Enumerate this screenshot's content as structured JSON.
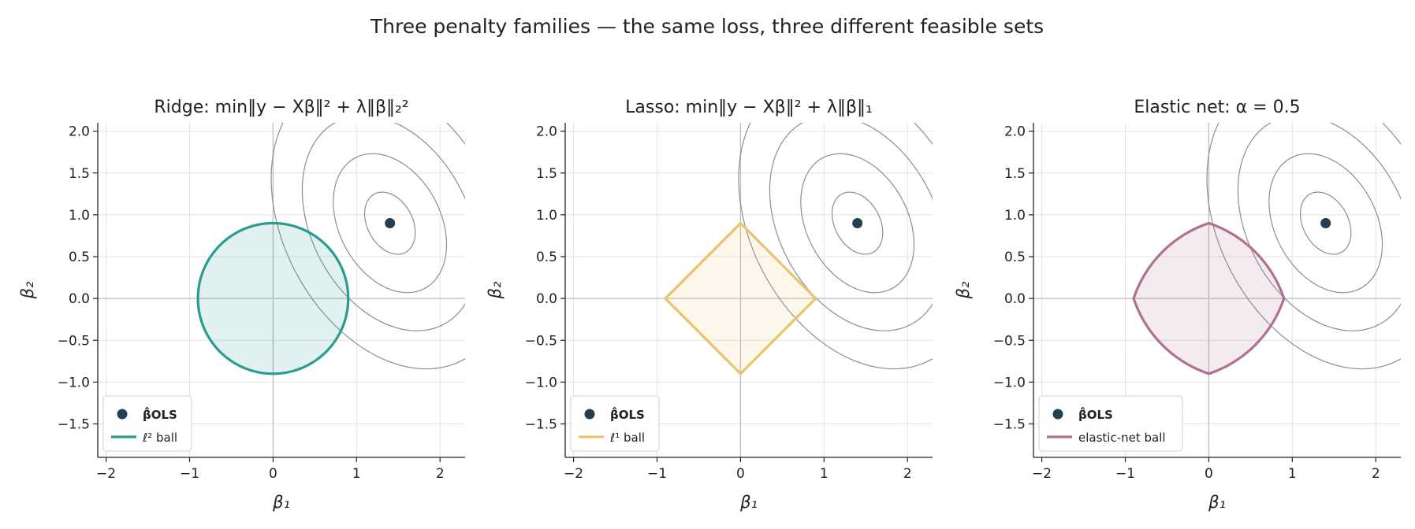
{
  "suptitle": "Three penalty families — the same loss, three different feasible sets",
  "chart_data": [
    {
      "type": "contour",
      "title": "Ridge:  min‖y − Xβ‖² + λ‖β‖₂²",
      "xlabel": "β₁",
      "ylabel": "β₂",
      "xlim": [
        -2.1,
        2.3
      ],
      "ylim": [
        -1.9,
        2.1
      ],
      "xticks": [
        -2,
        -1,
        0,
        1,
        2
      ],
      "yticks": [
        -1.5,
        -1.0,
        -0.5,
        0.0,
        0.5,
        1.0,
        1.5,
        2.0
      ],
      "grid": true,
      "ols_point": [
        1.4,
        0.9
      ],
      "constraint": {
        "shape": "l2",
        "radius": 0.9
      },
      "constraint_color": "#2a9d8f",
      "legend": {
        "position": "lower-left",
        "entries": [
          "β̂OLS",
          "ℓ² ball"
        ]
      }
    },
    {
      "type": "contour",
      "title": "Lasso:  min‖y − Xβ‖² + λ‖β‖₁",
      "xlabel": "β₁",
      "ylabel": "β₂",
      "xlim": [
        -2.1,
        2.3
      ],
      "ylim": [
        -1.9,
        2.1
      ],
      "xticks": [
        -2,
        -1,
        0,
        1,
        2
      ],
      "yticks": [
        -1.5,
        -1.0,
        -0.5,
        0.0,
        0.5,
        1.0,
        1.5,
        2.0
      ],
      "grid": true,
      "ols_point": [
        1.4,
        0.9
      ],
      "constraint": {
        "shape": "l1",
        "radius": 0.9
      },
      "constraint_color": "#e9c46a",
      "legend": {
        "position": "lower-left",
        "entries": [
          "β̂OLS",
          "ℓ¹ ball"
        ]
      }
    },
    {
      "type": "contour",
      "title": "Elastic net:  α = 0.5",
      "xlabel": "β₁",
      "ylabel": "β₂",
      "xlim": [
        -2.1,
        2.3
      ],
      "ylim": [
        -1.9,
        2.1
      ],
      "xticks": [
        -2,
        -1,
        0,
        1,
        2
      ],
      "yticks": [
        -1.5,
        -1.0,
        -0.5,
        0.0,
        0.5,
        1.0,
        1.5,
        2.0
      ],
      "grid": true,
      "ols_point": [
        1.4,
        0.9
      ],
      "constraint": {
        "shape": "elastic",
        "radius": 0.9,
        "alpha": 0.5
      },
      "constraint_color": "#b07090",
      "legend": {
        "position": "lower-left",
        "entries": [
          "β̂OLS",
          "elastic-net ball"
        ]
      }
    }
  ],
  "contour_levels": [
    0.1,
    0.5,
    1.2,
    2.2
  ],
  "contour_color": "#7f9299",
  "ols_color": "#22404f"
}
